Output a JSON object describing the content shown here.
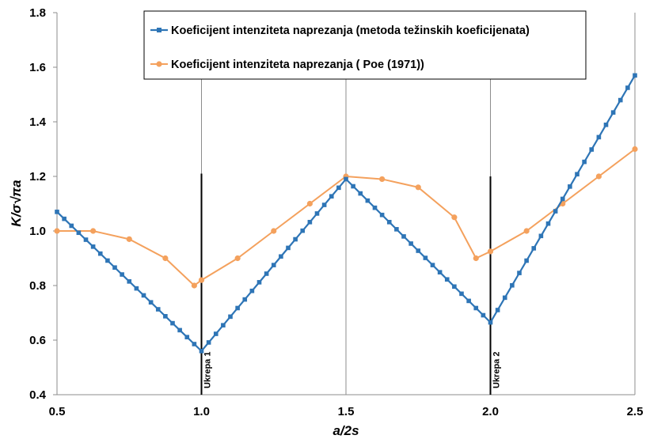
{
  "chart_data": {
    "type": "line",
    "xlabel": "a/2s",
    "ylabel": "K/σ√πa",
    "xlim": [
      0.5,
      2.5
    ],
    "ylim": [
      0.4,
      1.8
    ],
    "x_ticks": [
      "0.5",
      "1.0",
      "1.5",
      "2.0",
      "2.5"
    ],
    "y_ticks": [
      "0.4",
      "0.6",
      "0.8",
      "1.0",
      "1.2",
      "1.4",
      "1.6",
      "1.8"
    ],
    "grid": "vertical",
    "legend_position": "top-center",
    "series": [
      {
        "name": "Koeficijent intenziteta naprezanja  (metoda težinskih koeficijenata)",
        "color": "#2e75b6",
        "marker": "square",
        "x": [
          0.5,
          1.0,
          1.5,
          2.0,
          2.5
        ],
        "y": [
          1.07,
          0.56,
          1.19,
          0.665,
          1.57
        ]
      },
      {
        "name": "Koeficijent intenziteta naprezanja ( Poe (1971))",
        "color": "#f4a15d",
        "marker": "circle",
        "x": [
          0.5,
          0.625,
          0.75,
          0.875,
          0.975,
          1.0,
          1.125,
          1.25,
          1.375,
          1.5,
          1.625,
          1.75,
          1.875,
          1.95,
          2.0,
          2.125,
          2.25,
          2.375,
          2.5
        ],
        "y": [
          1.0,
          1.0,
          0.97,
          0.9,
          0.8,
          0.82,
          0.9,
          1.0,
          1.1,
          1.2,
          1.19,
          1.16,
          1.05,
          0.9,
          0.925,
          1.0,
          1.1,
          1.2,
          1.3
        ]
      }
    ],
    "annotations": [
      {
        "text": "Ukrepa 1",
        "x": 1.0,
        "y_top": 1.21
      },
      {
        "text": "Ukrepa 2",
        "x": 2.0,
        "y_top": 1.2
      }
    ]
  }
}
